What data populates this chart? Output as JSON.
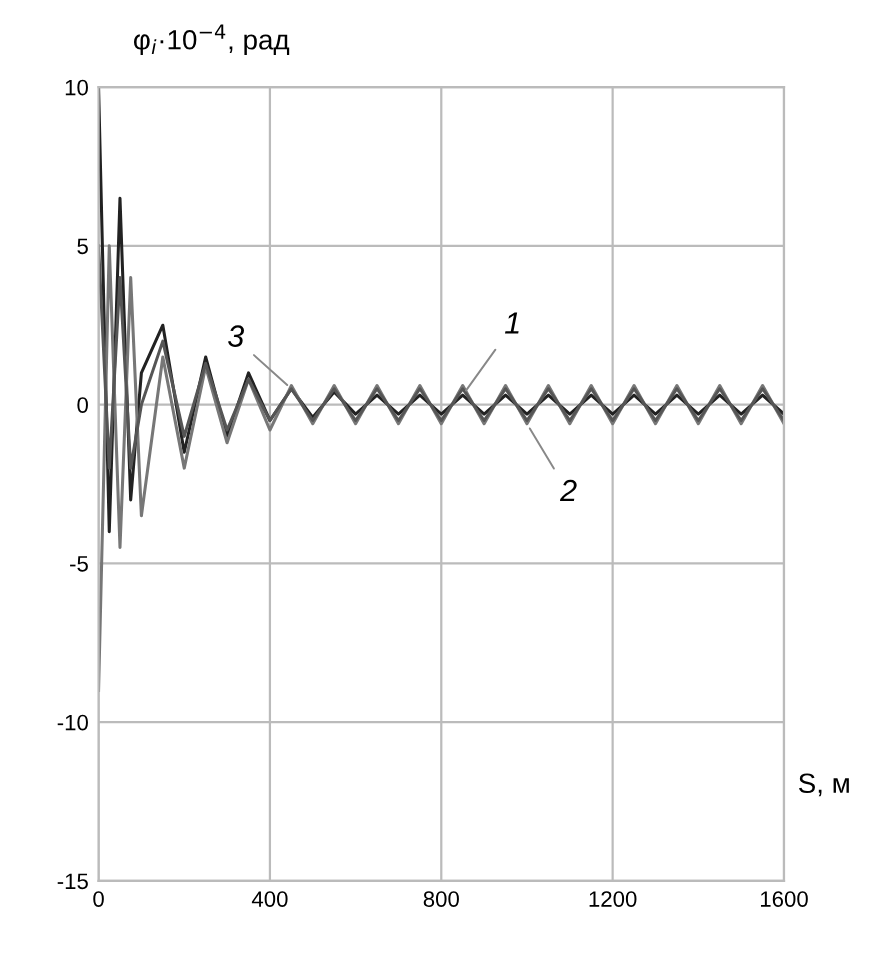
{
  "chart_data": {
    "type": "line",
    "ylabel": "φ$_{i}$·10$^{−4}$, рад",
    "xlabel": "S, м",
    "x": [
      0,
      25,
      50,
      75,
      100,
      150,
      200,
      250,
      300,
      350,
      400,
      450,
      500,
      550,
      600,
      650,
      700,
      750,
      800,
      850,
      900,
      950,
      1000,
      1050,
      1100,
      1150,
      1200,
      1250,
      1300,
      1350,
      1400,
      1450,
      1500,
      1550,
      1600
    ],
    "series": [
      {
        "color": "#222222",
        "values": [
          10,
          -4,
          6.5,
          -3,
          1,
          2.5,
          -1.5,
          1.5,
          -1,
          1,
          -0.5,
          0.5,
          -0.4,
          0.4,
          -0.3,
          0.3,
          -0.3,
          0.3,
          -0.3,
          0.3,
          -0.3,
          0.3,
          -0.3,
          0.3,
          -0.3,
          0.3,
          -0.3,
          0.3,
          -0.3,
          0.3,
          -0.3,
          0.3,
          -0.3,
          0.3,
          -0.3
        ]
      },
      {
        "color": "#777777",
        "values": [
          -9,
          5,
          -4.5,
          4,
          -3.5,
          1.5,
          -2,
          1.2,
          -1.2,
          0.8,
          -0.8,
          0.6,
          -0.6,
          0.6,
          -0.6,
          0.6,
          -0.6,
          0.6,
          -0.6,
          0.6,
          -0.6,
          0.6,
          -0.6,
          0.6,
          -0.6,
          0.6,
          -0.6,
          0.6,
          -0.6,
          0.6,
          -0.6,
          0.6,
          -0.6,
          0.6,
          -0.6
        ]
      },
      {
        "color": "#555555",
        "values": [
          5,
          -2,
          4,
          -2,
          0,
          2,
          -1,
          1.3,
          -0.8,
          0.8,
          -0.5,
          0.5,
          -0.5,
          0.5,
          -0.5,
          0.5,
          -0.5,
          0.5,
          -0.5,
          0.5,
          -0.5,
          0.5,
          -0.5,
          0.5,
          -0.5,
          0.5,
          -0.5,
          0.5,
          -0.5,
          0.5,
          -0.5,
          0.5,
          -0.5,
          0.5,
          -0.5
        ]
      }
    ],
    "annotations": [
      {
        "text": "1",
        "x": 850,
        "y": 0.3
      },
      {
        "text": "2",
        "x": 1000,
        "y": -0.6
      },
      {
        "text": "3",
        "x": 450,
        "y": 0.5
      }
    ],
    "xlim": [
      0,
      1600
    ],
    "xticks": [
      0,
      400,
      800,
      1200,
      1600
    ],
    "ylim": [
      -15,
      10
    ],
    "yticks": [
      -15,
      -10,
      -5,
      0,
      5,
      10
    ],
    "grid": true,
    "legend": false
  }
}
